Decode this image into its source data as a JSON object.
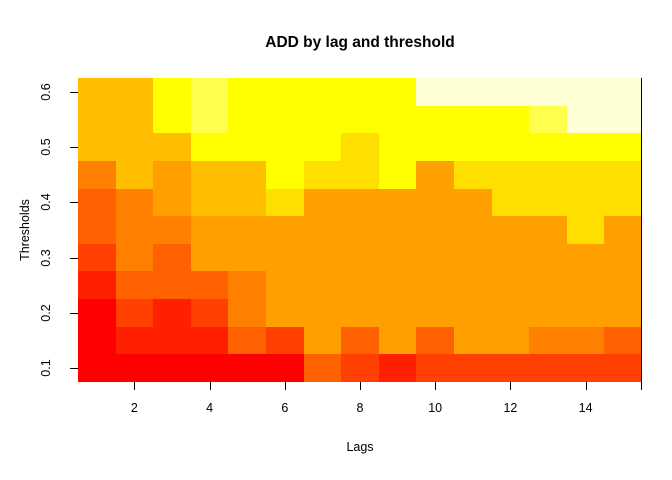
{
  "title": "ADD by lag and threshold",
  "x_axis": {
    "label": "Lags",
    "ticks": [
      2,
      4,
      6,
      8,
      10,
      12,
      14
    ]
  },
  "y_axis": {
    "label": "Thresholds",
    "ticks": [
      0.1,
      0.2,
      0.3,
      0.4,
      0.5,
      0.6
    ]
  },
  "chart_data": {
    "type": "heatmap",
    "title": "ADD by lag and threshold",
    "xlabel": "Lags",
    "ylabel": "Thresholds",
    "x_lags": [
      1,
      2,
      3,
      4,
      5,
      6,
      7,
      8,
      9,
      10,
      11,
      12,
      13,
      14,
      15
    ],
    "y_thresholds_top_to_bottom": [
      0.6,
      0.55,
      0.5,
      0.45,
      0.4,
      0.35,
      0.3,
      0.25,
      0.2,
      0.15,
      0.1
    ],
    "xlim": [
      0.5,
      15.5
    ],
    "ylim": [
      0.075,
      0.625
    ],
    "grid": false,
    "legend": "none",
    "palette_low_to_high": [
      "#FF0000",
      "#FF2000",
      "#FF4000",
      "#FF6000",
      "#FF8000",
      "#FF9F00",
      "#FFBF00",
      "#FFDF00",
      "#FFFF00",
      "#FFFF4D",
      "#FFFFD5"
    ],
    "cell_colors_rows_top_to_bottom": [
      [
        "#FFBF00",
        "#FFBF00",
        "#FFFF00",
        "#FFFF4D",
        "#FFFF00",
        "#FFFF00",
        "#FFFF00",
        "#FFFF00",
        "#FFFF00",
        "#FFFFD5",
        "#FFFFD5",
        "#FFFFD5",
        "#FFFFD5",
        "#FFFFD5",
        "#FFFFD5"
      ],
      [
        "#FFBF00",
        "#FFBF00",
        "#FFFF00",
        "#FFFF4D",
        "#FFFF00",
        "#FFFF00",
        "#FFFF00",
        "#FFFF00",
        "#FFFF00",
        "#FFFF00",
        "#FFFF00",
        "#FFFF00",
        "#FFFF4D",
        "#FFFFD5",
        "#FFFFD5"
      ],
      [
        "#FFBF00",
        "#FFBF00",
        "#FFBF00",
        "#FFFF00",
        "#FFFF00",
        "#FFFF00",
        "#FFFF00",
        "#FFDF00",
        "#FFFF00",
        "#FFFF00",
        "#FFFF00",
        "#FFFF00",
        "#FFFF00",
        "#FFFF00",
        "#FFFF00"
      ],
      [
        "#FF8000",
        "#FFBF00",
        "#FF9F00",
        "#FFBF00",
        "#FFBF00",
        "#FFFF00",
        "#FFDF00",
        "#FFDF00",
        "#FFFF00",
        "#FF9F00",
        "#FFDF00",
        "#FFDF00",
        "#FFDF00",
        "#FFDF00",
        "#FFDF00"
      ],
      [
        "#FF6000",
        "#FF8000",
        "#FF9F00",
        "#FFBF00",
        "#FFBF00",
        "#FFDF00",
        "#FF9F00",
        "#FF9F00",
        "#FF9F00",
        "#FF9F00",
        "#FF9F00",
        "#FFDF00",
        "#FFDF00",
        "#FFDF00",
        "#FFDF00"
      ],
      [
        "#FF6000",
        "#FF8000",
        "#FF8000",
        "#FF9F00",
        "#FF9F00",
        "#FF9F00",
        "#FF9F00",
        "#FF9F00",
        "#FF9F00",
        "#FF9F00",
        "#FF9F00",
        "#FF9F00",
        "#FF9F00",
        "#FFDF00",
        "#FF9F00"
      ],
      [
        "#FF4000",
        "#FF8000",
        "#FF6000",
        "#FF9F00",
        "#FF9F00",
        "#FF9F00",
        "#FF9F00",
        "#FF9F00",
        "#FF9F00",
        "#FF9F00",
        "#FF9F00",
        "#FF9F00",
        "#FF9F00",
        "#FF9F00",
        "#FF9F00"
      ],
      [
        "#FF2000",
        "#FF6000",
        "#FF6000",
        "#FF6000",
        "#FF8000",
        "#FF9F00",
        "#FF9F00",
        "#FF9F00",
        "#FF9F00",
        "#FF9F00",
        "#FF9F00",
        "#FF9F00",
        "#FF9F00",
        "#FF9F00",
        "#FF9F00"
      ],
      [
        "#FF0000",
        "#FF4000",
        "#FF2000",
        "#FF4000",
        "#FF8000",
        "#FF9F00",
        "#FF9F00",
        "#FF9F00",
        "#FF9F00",
        "#FF9F00",
        "#FF9F00",
        "#FF9F00",
        "#FF9F00",
        "#FF9F00",
        "#FF9F00"
      ],
      [
        "#FF0000",
        "#FF2000",
        "#FF2000",
        "#FF2000",
        "#FF6000",
        "#FF4000",
        "#FF9F00",
        "#FF6000",
        "#FF9F00",
        "#FF6000",
        "#FF9F00",
        "#FF9F00",
        "#FF8000",
        "#FF8000",
        "#FF6000"
      ],
      [
        "#FF0000",
        "#FF0000",
        "#FF0000",
        "#FF0000",
        "#FF0000",
        "#FF0000",
        "#FF6000",
        "#FF4000",
        "#FF2000",
        "#FF4000",
        "#FF4000",
        "#FF4000",
        "#FF4000",
        "#FF4000",
        "#FF4000"
      ]
    ]
  }
}
